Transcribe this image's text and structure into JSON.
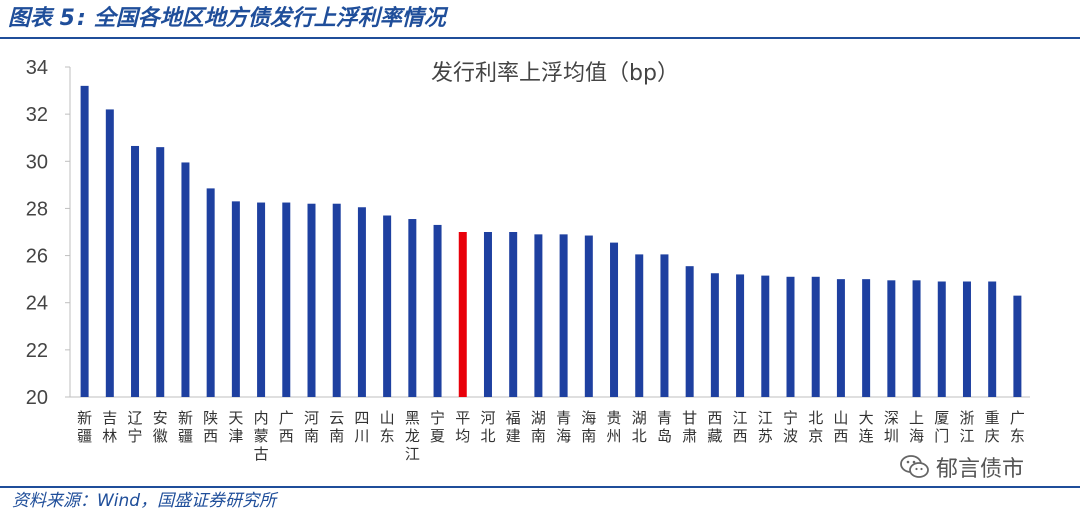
{
  "header": {
    "label": "图表 5",
    "separator": ":",
    "title": "全国各地区地方债发行上浮利率情况"
  },
  "footer": {
    "source": "资料来源：Wind，国盛证券研究所"
  },
  "watermark": {
    "text": "郁言债市",
    "icon": "wechat-icon"
  },
  "colors": {
    "accent": "#1f4e9a",
    "bar": "#1e40a0",
    "highlight_bar": "#e8000a"
  },
  "chart_data": {
    "type": "bar",
    "title": "发行利率上浮均值（bp）",
    "xlabel": "",
    "ylabel": "",
    "ylim": [
      20,
      34
    ],
    "yticks": [
      20,
      22,
      24,
      26,
      28,
      30,
      32,
      34
    ],
    "grid": false,
    "highlight_category": "平均",
    "categories": [
      "新疆",
      "吉林",
      "辽宁",
      "安徽",
      "新疆",
      "陕西",
      "天津",
      "内蒙古",
      "广西",
      "河南",
      "云南",
      "四川",
      "山东",
      "黑龙江",
      "宁夏",
      "平均",
      "河北",
      "福建",
      "湖南",
      "青海",
      "海南",
      "贵州",
      "湖北",
      "青岛",
      "甘肃",
      "西藏",
      "江西",
      "江苏",
      "宁波",
      "北京",
      "山西",
      "大连",
      "深圳",
      "上海",
      "厦门",
      "浙江",
      "重庆",
      "广东"
    ],
    "values": [
      33.2,
      32.2,
      30.65,
      30.6,
      29.95,
      28.85,
      28.3,
      28.25,
      28.25,
      28.2,
      28.2,
      28.05,
      27.7,
      27.55,
      27.3,
      27.0,
      27.0,
      27.0,
      26.9,
      26.9,
      26.85,
      26.55,
      26.05,
      26.05,
      25.55,
      25.25,
      25.2,
      25.15,
      25.1,
      25.1,
      25.0,
      25.0,
      24.95,
      24.95,
      24.9,
      24.9,
      24.9,
      24.3
    ]
  }
}
